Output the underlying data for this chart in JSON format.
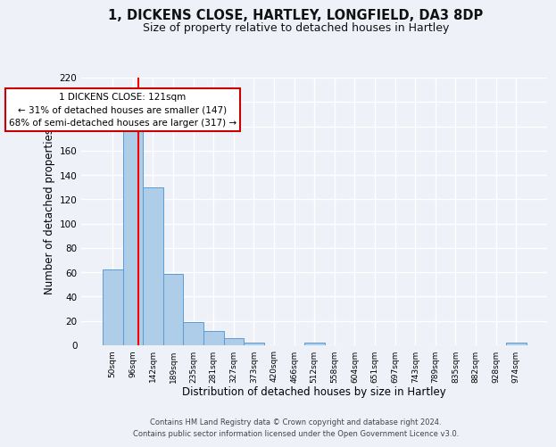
{
  "title": "1, DICKENS CLOSE, HARTLEY, LONGFIELD, DA3 8DP",
  "subtitle": "Size of property relative to detached houses in Hartley",
  "xlabel": "Distribution of detached houses by size in Hartley",
  "ylabel": "Number of detached properties",
  "bar_labels": [
    "50sqm",
    "96sqm",
    "142sqm",
    "189sqm",
    "235sqm",
    "281sqm",
    "327sqm",
    "373sqm",
    "420sqm",
    "466sqm",
    "512sqm",
    "558sqm",
    "604sqm",
    "651sqm",
    "697sqm",
    "743sqm",
    "789sqm",
    "835sqm",
    "882sqm",
    "928sqm",
    "974sqm"
  ],
  "bar_heights": [
    62,
    180,
    130,
    59,
    19,
    12,
    6,
    2,
    0,
    0,
    2,
    0,
    0,
    0,
    0,
    0,
    0,
    0,
    0,
    0,
    2
  ],
  "bar_color": "#aecde8",
  "bar_edgecolor": "#5b9bd5",
  "red_line_x": 1.25,
  "annotation_title": "1 DICKENS CLOSE: 121sqm",
  "annotation_line1": "← 31% of detached houses are smaller (147)",
  "annotation_line2": "68% of semi-detached houses are larger (317) →",
  "annotation_box_color": "#ffffff",
  "annotation_box_edgecolor": "#cc0000",
  "footer_line1": "Contains HM Land Registry data © Crown copyright and database right 2024.",
  "footer_line2": "Contains public sector information licensed under the Open Government Licence v3.0.",
  "ylim": [
    0,
    220
  ],
  "yticks": [
    0,
    20,
    40,
    60,
    80,
    100,
    120,
    140,
    160,
    180,
    200,
    220
  ],
  "background_color": "#eef2f8",
  "grid_color": "#ffffff",
  "title_fontsize": 10.5,
  "subtitle_fontsize": 9,
  "xlabel_fontsize": 8.5,
  "ylabel_fontsize": 8.5
}
